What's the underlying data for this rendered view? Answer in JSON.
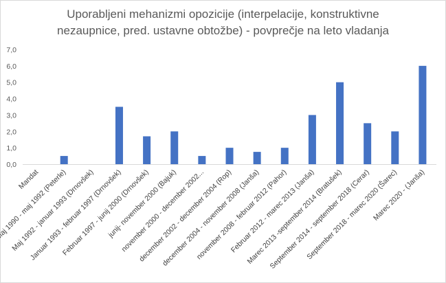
{
  "chart_data": {
    "type": "bar",
    "title_lines": [
      "Uporabljeni mehanizmi opozicije (interpelacije, konstruktivne",
      "nezaupnice, pred. ustavne obtožbe)  - povprečje na leto vladanja"
    ],
    "categories": [
      "Mandat",
      "Maj 1990 - maj 1992 (Peterle)",
      "Maj 1992 - januar 1993 (Drnovšek)",
      "Januar 1993 - februar 1997 (Drnovšek)",
      "Februar 1997 - junij 2000 (Drnovšek)",
      "junij- november 2000 (Bajuk)",
      "november 2000 - december 2002...",
      "december 2002 - december 2004 (Rop)",
      "december 2004 - november 2008 (Janša)",
      "november 2008 - februar 2012 (Pahor)",
      "Februar 2012 - marec 2013 (Janša)",
      "Marec 2013 -september 2014 (Bratušek)",
      "September 2014 - september 2018 (Cerar)",
      "September 2018 - marec 2020 (Šarec)",
      "Marec 2020 - (Janša)"
    ],
    "values": [
      0,
      0.5,
      0,
      3.5,
      1.7,
      2.0,
      0.5,
      1.0,
      0.75,
      1.0,
      3.0,
      5.0,
      2.5,
      2.0,
      6.0
    ],
    "y_ticks": [
      "0,0",
      "1,0",
      "2,0",
      "3,0",
      "4,0",
      "5,0",
      "6,0",
      "7,0"
    ],
    "ylim": [
      0,
      7
    ],
    "grid": false,
    "legend": "none",
    "bar_color": "#4472c4"
  }
}
